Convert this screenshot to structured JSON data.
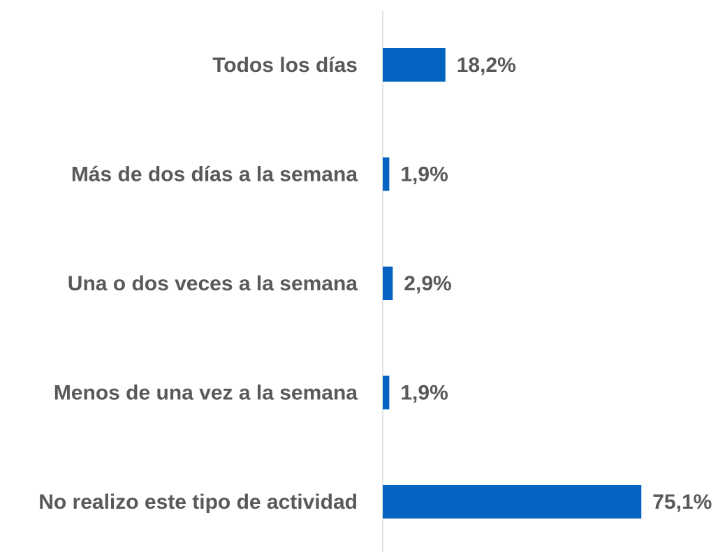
{
  "chart_data": {
    "type": "bar",
    "orientation": "horizontal",
    "categories": [
      "Todos los días",
      "Más de dos días a la semana",
      "Una o dos veces a la semana",
      "Menos de una vez a la semana",
      "No realizo este tipo de actividad"
    ],
    "values": [
      18.2,
      1.9,
      2.9,
      1.9,
      75.1
    ],
    "value_labels": [
      "18,2%",
      "1,9%",
      "2,9%",
      "1,9%",
      "75,1%"
    ],
    "color": "#0563c1"
  }
}
